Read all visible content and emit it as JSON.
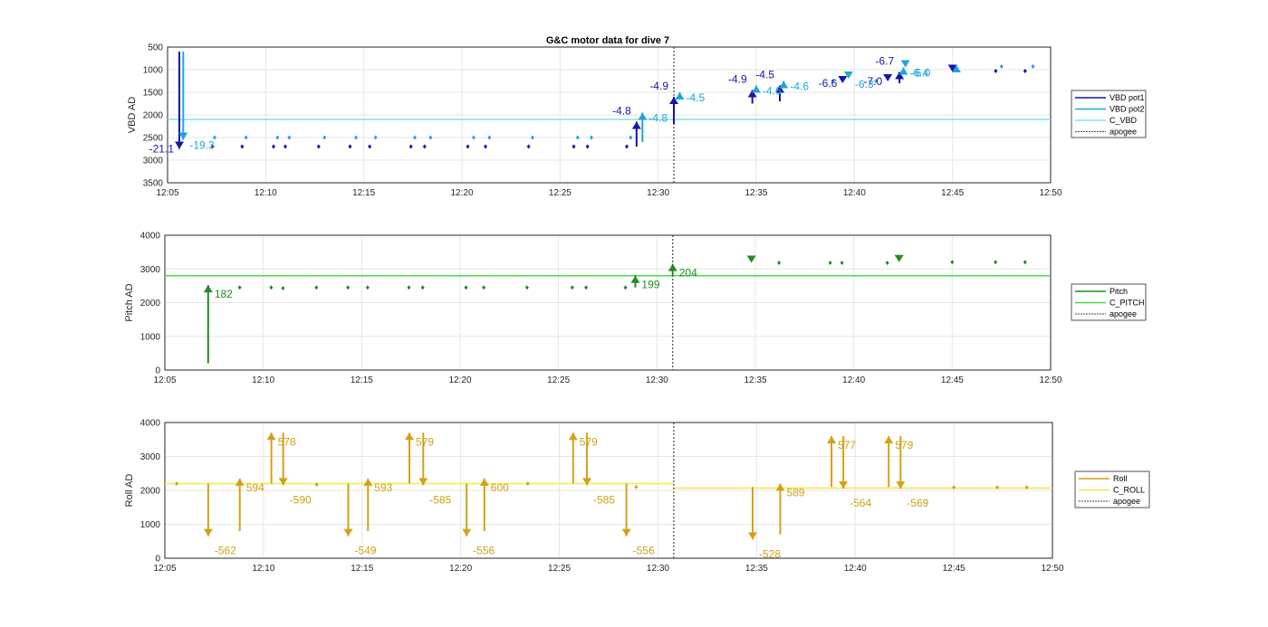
{
  "title": "G&C motor data for dive 7",
  "chart_data": [
    {
      "type": "scatter",
      "ylabel": "VBD AD",
      "xlim": [
        "12:05",
        "12:50"
      ],
      "ylim": [
        500,
        3500
      ],
      "y_reversed": true,
      "yticks": [
        500,
        1000,
        1500,
        2000,
        2500,
        3000,
        3500
      ],
      "xticks": [
        "12:05",
        "12:10",
        "12:15",
        "12:20",
        "12:25",
        "12:30",
        "12:35",
        "12:40",
        "12:45",
        "12:50"
      ],
      "grid": true,
      "legend_position": "outside-right",
      "legend": [
        "VBD pot1",
        "VBD pot2",
        "C_VBD",
        "apogee"
      ],
      "colors": {
        "pot1": "#1515a8",
        "pot2": "#1ea6db",
        "c_line": "#7ee3ec",
        "apogee": "#444444"
      },
      "c_value": 2100,
      "apogee_x": "12:30.8",
      "pot1_points": [
        [
          "12:07.3",
          2700
        ],
        [
          "12:08.8",
          2700
        ],
        [
          "12:10.4",
          2700
        ],
        [
          "12:11.0",
          2700
        ],
        [
          "12:12.7",
          2700
        ],
        [
          "12:14.3",
          2700
        ],
        [
          "12:15.3",
          2700
        ],
        [
          "12:17.4",
          2700
        ],
        [
          "12:18.1",
          2700
        ],
        [
          "12:20.3",
          2700
        ],
        [
          "12:21.2",
          2700
        ],
        [
          "12:23.4",
          2700
        ],
        [
          "12:25.7",
          2700
        ],
        [
          "12:26.4",
          2700
        ],
        [
          "12:28.4",
          2700
        ],
        [
          "12:47.2",
          1030
        ],
        [
          "12:48.7",
          1030
        ]
      ],
      "pot2_points": [
        [
          "12:07.4",
          2500
        ],
        [
          "12:09.0",
          2500
        ],
        [
          "12:10.6",
          2500
        ],
        [
          "12:11.2",
          2500
        ],
        [
          "12:13.0",
          2500
        ],
        [
          "12:14.6",
          2500
        ],
        [
          "12:15.6",
          2500
        ],
        [
          "12:17.6",
          2500
        ],
        [
          "12:18.4",
          2500
        ],
        [
          "12:20.6",
          2500
        ],
        [
          "12:21.4",
          2500
        ],
        [
          "12:23.6",
          2500
        ],
        [
          "12:25.9",
          2500
        ],
        [
          "12:26.6",
          2500
        ],
        [
          "12:28.6",
          2500
        ],
        [
          "12:38.9",
          1250
        ],
        [
          "12:41.1",
          1250
        ],
        [
          "12:47.5",
          930
        ],
        [
          "12:49.1",
          930
        ]
      ],
      "pot1_moves": [
        {
          "x": "12:05.6",
          "from": 600,
          "to": 2750,
          "label": "-21.1"
        },
        {
          "x": "12:28.9",
          "from": 2700,
          "to": 2150,
          "label": "-4.8"
        },
        {
          "x": "12:30.8",
          "from": 2200,
          "to": 1600,
          "label": "-4.9"
        },
        {
          "x": "12:34.8",
          "from": 1750,
          "to": 1450,
          "label": "-4.9"
        },
        {
          "x": "12:36.2",
          "from": 1700,
          "to": 1350,
          "label": "-4.5"
        },
        {
          "x": "12:39.4",
          "from": 1300,
          "to": 1300,
          "label": "-6.6"
        },
        {
          "x": "12:41.7",
          "from": 1260,
          "to": 1260,
          "label": "-7.0"
        },
        {
          "x": "12:42.3",
          "from": 1300,
          "to": 1050,
          "label": "-6.7"
        },
        {
          "x": "12:45.0",
          "from": 1050,
          "to": 1050,
          "label": ""
        }
      ],
      "pot2_moves": [
        {
          "x": "12:05.8",
          "from": 600,
          "to": 2550,
          "label": "-19.3"
        },
        {
          "x": "12:29.2",
          "from": 2600,
          "to": 1950,
          "label": "-4.8"
        },
        {
          "x": "12:31.1",
          "from": 1550,
          "to": 1500,
          "label": "-4.5"
        },
        {
          "x": "12:35.0",
          "from": 1400,
          "to": 1350,
          "label": "-4.6"
        },
        {
          "x": "12:36.4",
          "from": 1300,
          "to": 1250,
          "label": "-4.6"
        },
        {
          "x": "12:39.7",
          "from": 1200,
          "to": 1200,
          "label": "-6.3"
        },
        {
          "x": "12:42.5",
          "from": 1000,
          "to": 950,
          "label": "-6.4"
        },
        {
          "x": "12:42.6",
          "from": 950,
          "to": 950,
          "label": "-6.0"
        },
        {
          "x": "12:45.2",
          "from": 950,
          "to": 900,
          "label": ""
        }
      ]
    },
    {
      "type": "scatter",
      "ylabel": "Pitch AD",
      "xlim": [
        "12:05",
        "12:50"
      ],
      "ylim": [
        0,
        4000
      ],
      "yticks": [
        0,
        1000,
        2000,
        3000,
        4000
      ],
      "xticks": [
        "12:05",
        "12:10",
        "12:15",
        "12:20",
        "12:25",
        "12:30",
        "12:35",
        "12:40",
        "12:45",
        "12:50"
      ],
      "grid": true,
      "legend_position": "outside-right",
      "legend": [
        "Pitch",
        "C_PITCH",
        "apogee"
      ],
      "colors": {
        "main": "#228b22",
        "c_line": "#44dd44",
        "apogee": "#444444"
      },
      "c_value": 2800,
      "apogee_x": "12:30.8",
      "points": [
        [
          "12:08.8",
          2450
        ],
        [
          "12:10.4",
          2450
        ],
        [
          "12:11.0",
          2430
        ],
        [
          "12:12.7",
          2450
        ],
        [
          "12:14.3",
          2450
        ],
        [
          "12:15.3",
          2450
        ],
        [
          "12:17.4",
          2450
        ],
        [
          "12:18.1",
          2450
        ],
        [
          "12:20.3",
          2450
        ],
        [
          "12:21.2",
          2450
        ],
        [
          "12:23.4",
          2450
        ],
        [
          "12:25.7",
          2450
        ],
        [
          "12:26.4",
          2450
        ],
        [
          "12:28.4",
          2450
        ],
        [
          "12:36.2",
          3180
        ],
        [
          "12:38.8",
          3180
        ],
        [
          "12:39.4",
          3180
        ],
        [
          "12:41.7",
          3180
        ],
        [
          "12:45.0",
          3200
        ],
        [
          "12:47.2",
          3200
        ],
        [
          "12:48.7",
          3200
        ]
      ],
      "moves": [
        {
          "x": "12:07.2",
          "from": 200,
          "to": 2520,
          "label": "182"
        },
        {
          "x": "12:28.9",
          "from": 2450,
          "to": 2800,
          "label": "199"
        },
        {
          "x": "12:30.8",
          "from": 2800,
          "to": 3150,
          "label": "204"
        },
        {
          "x": "12:34.8",
          "from": 3180,
          "to": 3180,
          "label": ""
        },
        {
          "x": "12:42.3",
          "from": 3200,
          "to": 3200,
          "label": ""
        }
      ]
    },
    {
      "type": "scatter",
      "ylabel": "Roll AD",
      "xlim": [
        "12:05",
        "12:50"
      ],
      "ylim": [
        0,
        4000
      ],
      "yticks": [
        0,
        1000,
        2000,
        3000,
        4000
      ],
      "xticks": [
        "12:05",
        "12:10",
        "12:15",
        "12:20",
        "12:25",
        "12:30",
        "12:35",
        "12:40",
        "12:45",
        "12:50"
      ],
      "grid": true,
      "legend_position": "outside-right",
      "legend": [
        "Roll",
        "C_ROLL",
        "apogee"
      ],
      "colors": {
        "main": "#d4a017",
        "c_line": "#f5e84a",
        "apogee": "#444444"
      },
      "c_value_before": 2200,
      "c_value_after": 2070,
      "apogee_x": "12:30.8",
      "points": [
        [
          "12:05.6",
          2200
        ],
        [
          "12:12.7",
          2170
        ],
        [
          "12:23.4",
          2200
        ],
        [
          "12:28.9",
          2100
        ],
        [
          "12:45.0",
          2090
        ],
        [
          "12:47.2",
          2090
        ],
        [
          "12:48.7",
          2090
        ]
      ],
      "moves": [
        {
          "x": "12:07.2",
          "from": 2200,
          "to": 650,
          "label": "-562"
        },
        {
          "x": "12:08.8",
          "from": 800,
          "to": 2350,
          "label": "594"
        },
        {
          "x": "12:10.4",
          "from": 2200,
          "to": 3700,
          "label": "578"
        },
        {
          "x": "12:11.0",
          "from": 3700,
          "to": 2150,
          "label": "-590"
        },
        {
          "x": "12:14.3",
          "from": 2200,
          "to": 650,
          "label": "-549"
        },
        {
          "x": "12:15.3",
          "from": 800,
          "to": 2350,
          "label": "593"
        },
        {
          "x": "12:17.4",
          "from": 2200,
          "to": 3700,
          "label": "579"
        },
        {
          "x": "12:18.1",
          "from": 3700,
          "to": 2150,
          "label": "-585"
        },
        {
          "x": "12:20.3",
          "from": 2200,
          "to": 650,
          "label": "-556"
        },
        {
          "x": "12:21.2",
          "from": 800,
          "to": 2350,
          "label": "600"
        },
        {
          "x": "12:25.7",
          "from": 2200,
          "to": 3700,
          "label": "579"
        },
        {
          "x": "12:26.4",
          "from": 3700,
          "to": 2150,
          "label": "-585"
        },
        {
          "x": "12:28.4",
          "from": 2200,
          "to": 650,
          "label": "-556"
        },
        {
          "x": "12:34.8",
          "from": 2100,
          "to": 550,
          "label": "-528"
        },
        {
          "x": "12:36.2",
          "from": 700,
          "to": 2200,
          "label": "589"
        },
        {
          "x": "12:38.8",
          "from": 2100,
          "to": 3600,
          "label": "577"
        },
        {
          "x": "12:39.4",
          "from": 3600,
          "to": 2050,
          "label": "-564"
        },
        {
          "x": "12:41.7",
          "from": 2100,
          "to": 3600,
          "label": "579"
        },
        {
          "x": "12:42.3",
          "from": 3600,
          "to": 2050,
          "label": "-569"
        }
      ]
    }
  ]
}
